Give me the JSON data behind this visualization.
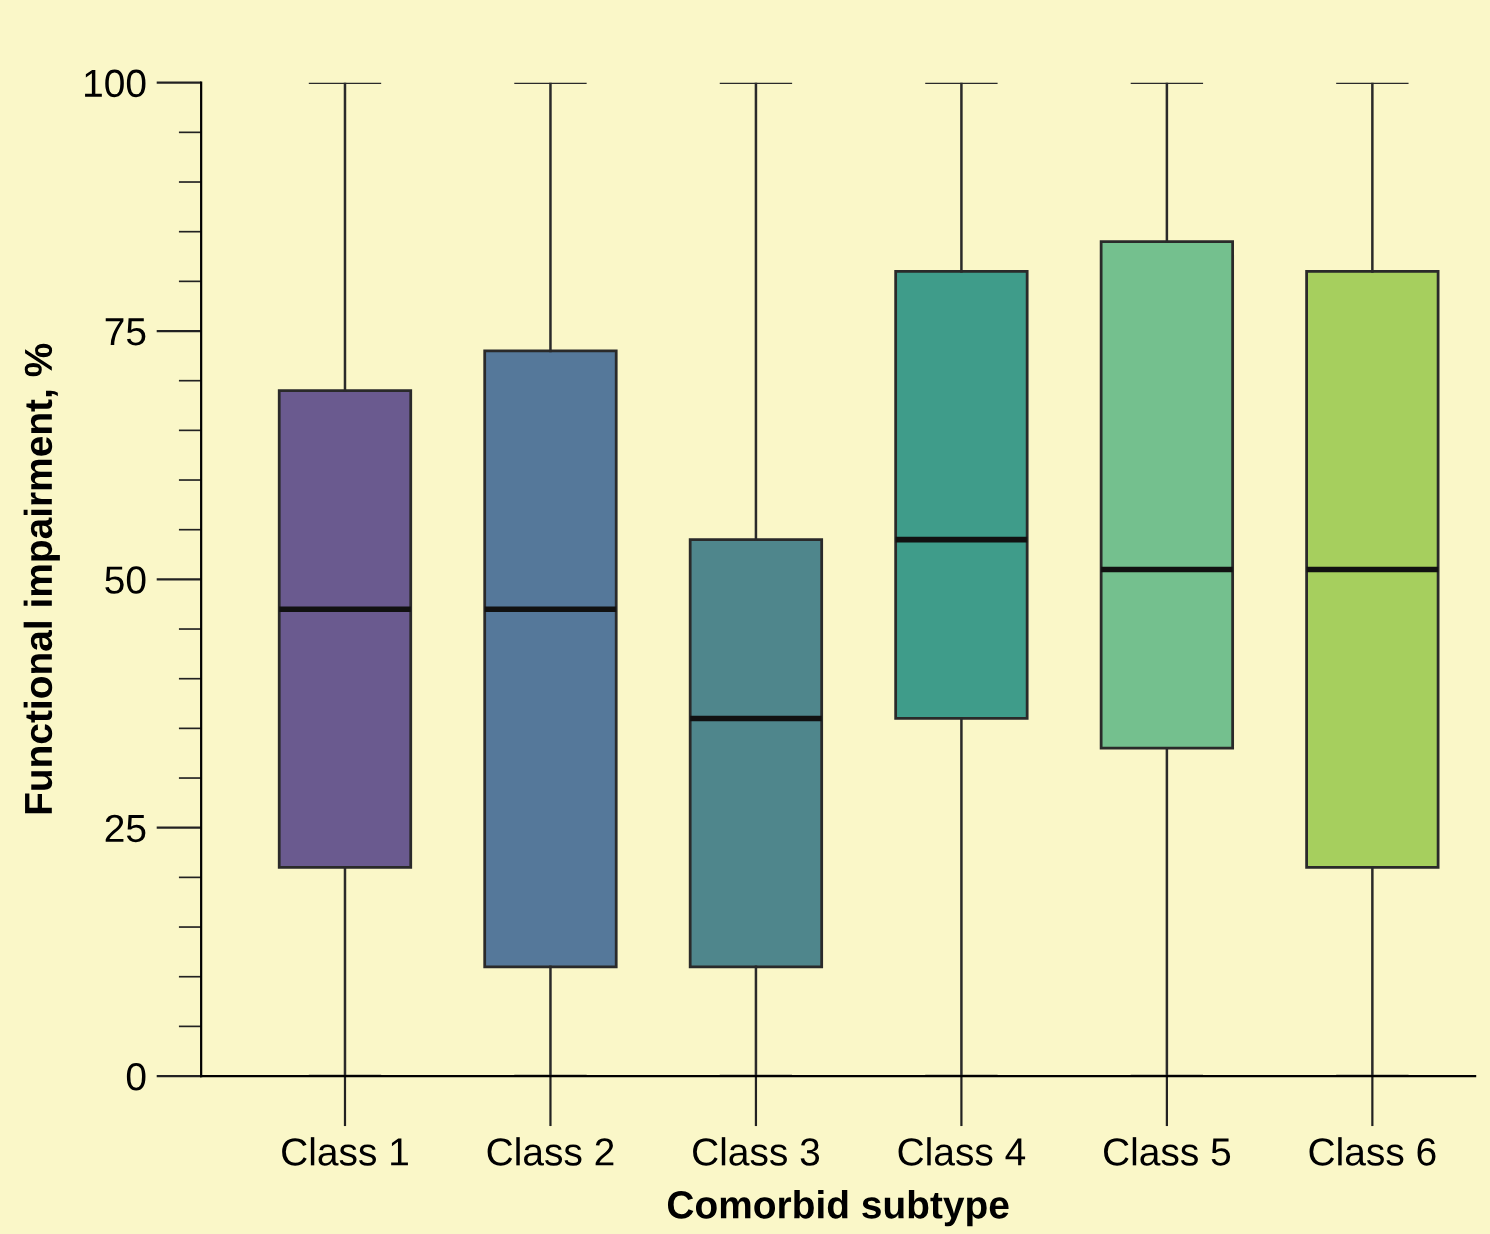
{
  "chart_data": {
    "type": "box",
    "xlabel": "Comorbid subtype",
    "ylabel": "Functional impairment, %",
    "categories": [
      "Class 1",
      "Class 2",
      "Class 3",
      "Class 4",
      "Class 5",
      "Class 6"
    ],
    "boxes": [
      {
        "low": 0,
        "q1": 21,
        "median": 47,
        "q3": 69,
        "high": 100
      },
      {
        "low": 0,
        "q1": 11,
        "median": 47,
        "q3": 73,
        "high": 100
      },
      {
        "low": 0,
        "q1": 11,
        "median": 36,
        "q3": 54,
        "high": 100
      },
      {
        "low": 0,
        "q1": 36,
        "median": 54,
        "q3": 81,
        "high": 100
      },
      {
        "low": 0,
        "q1": 33,
        "median": 51,
        "q3": 84,
        "high": 100
      },
      {
        "low": 0,
        "q1": 21,
        "median": 51,
        "q3": 81,
        "high": 100
      }
    ],
    "colors": [
      "#6a5a8f",
      "#55789a",
      "#4f868c",
      "#3f9c8a",
      "#74c08e",
      "#a6cf5e"
    ],
    "ylim": [
      0,
      100
    ],
    "yticks": [
      0,
      25,
      50,
      75,
      100
    ],
    "grid": false
  }
}
